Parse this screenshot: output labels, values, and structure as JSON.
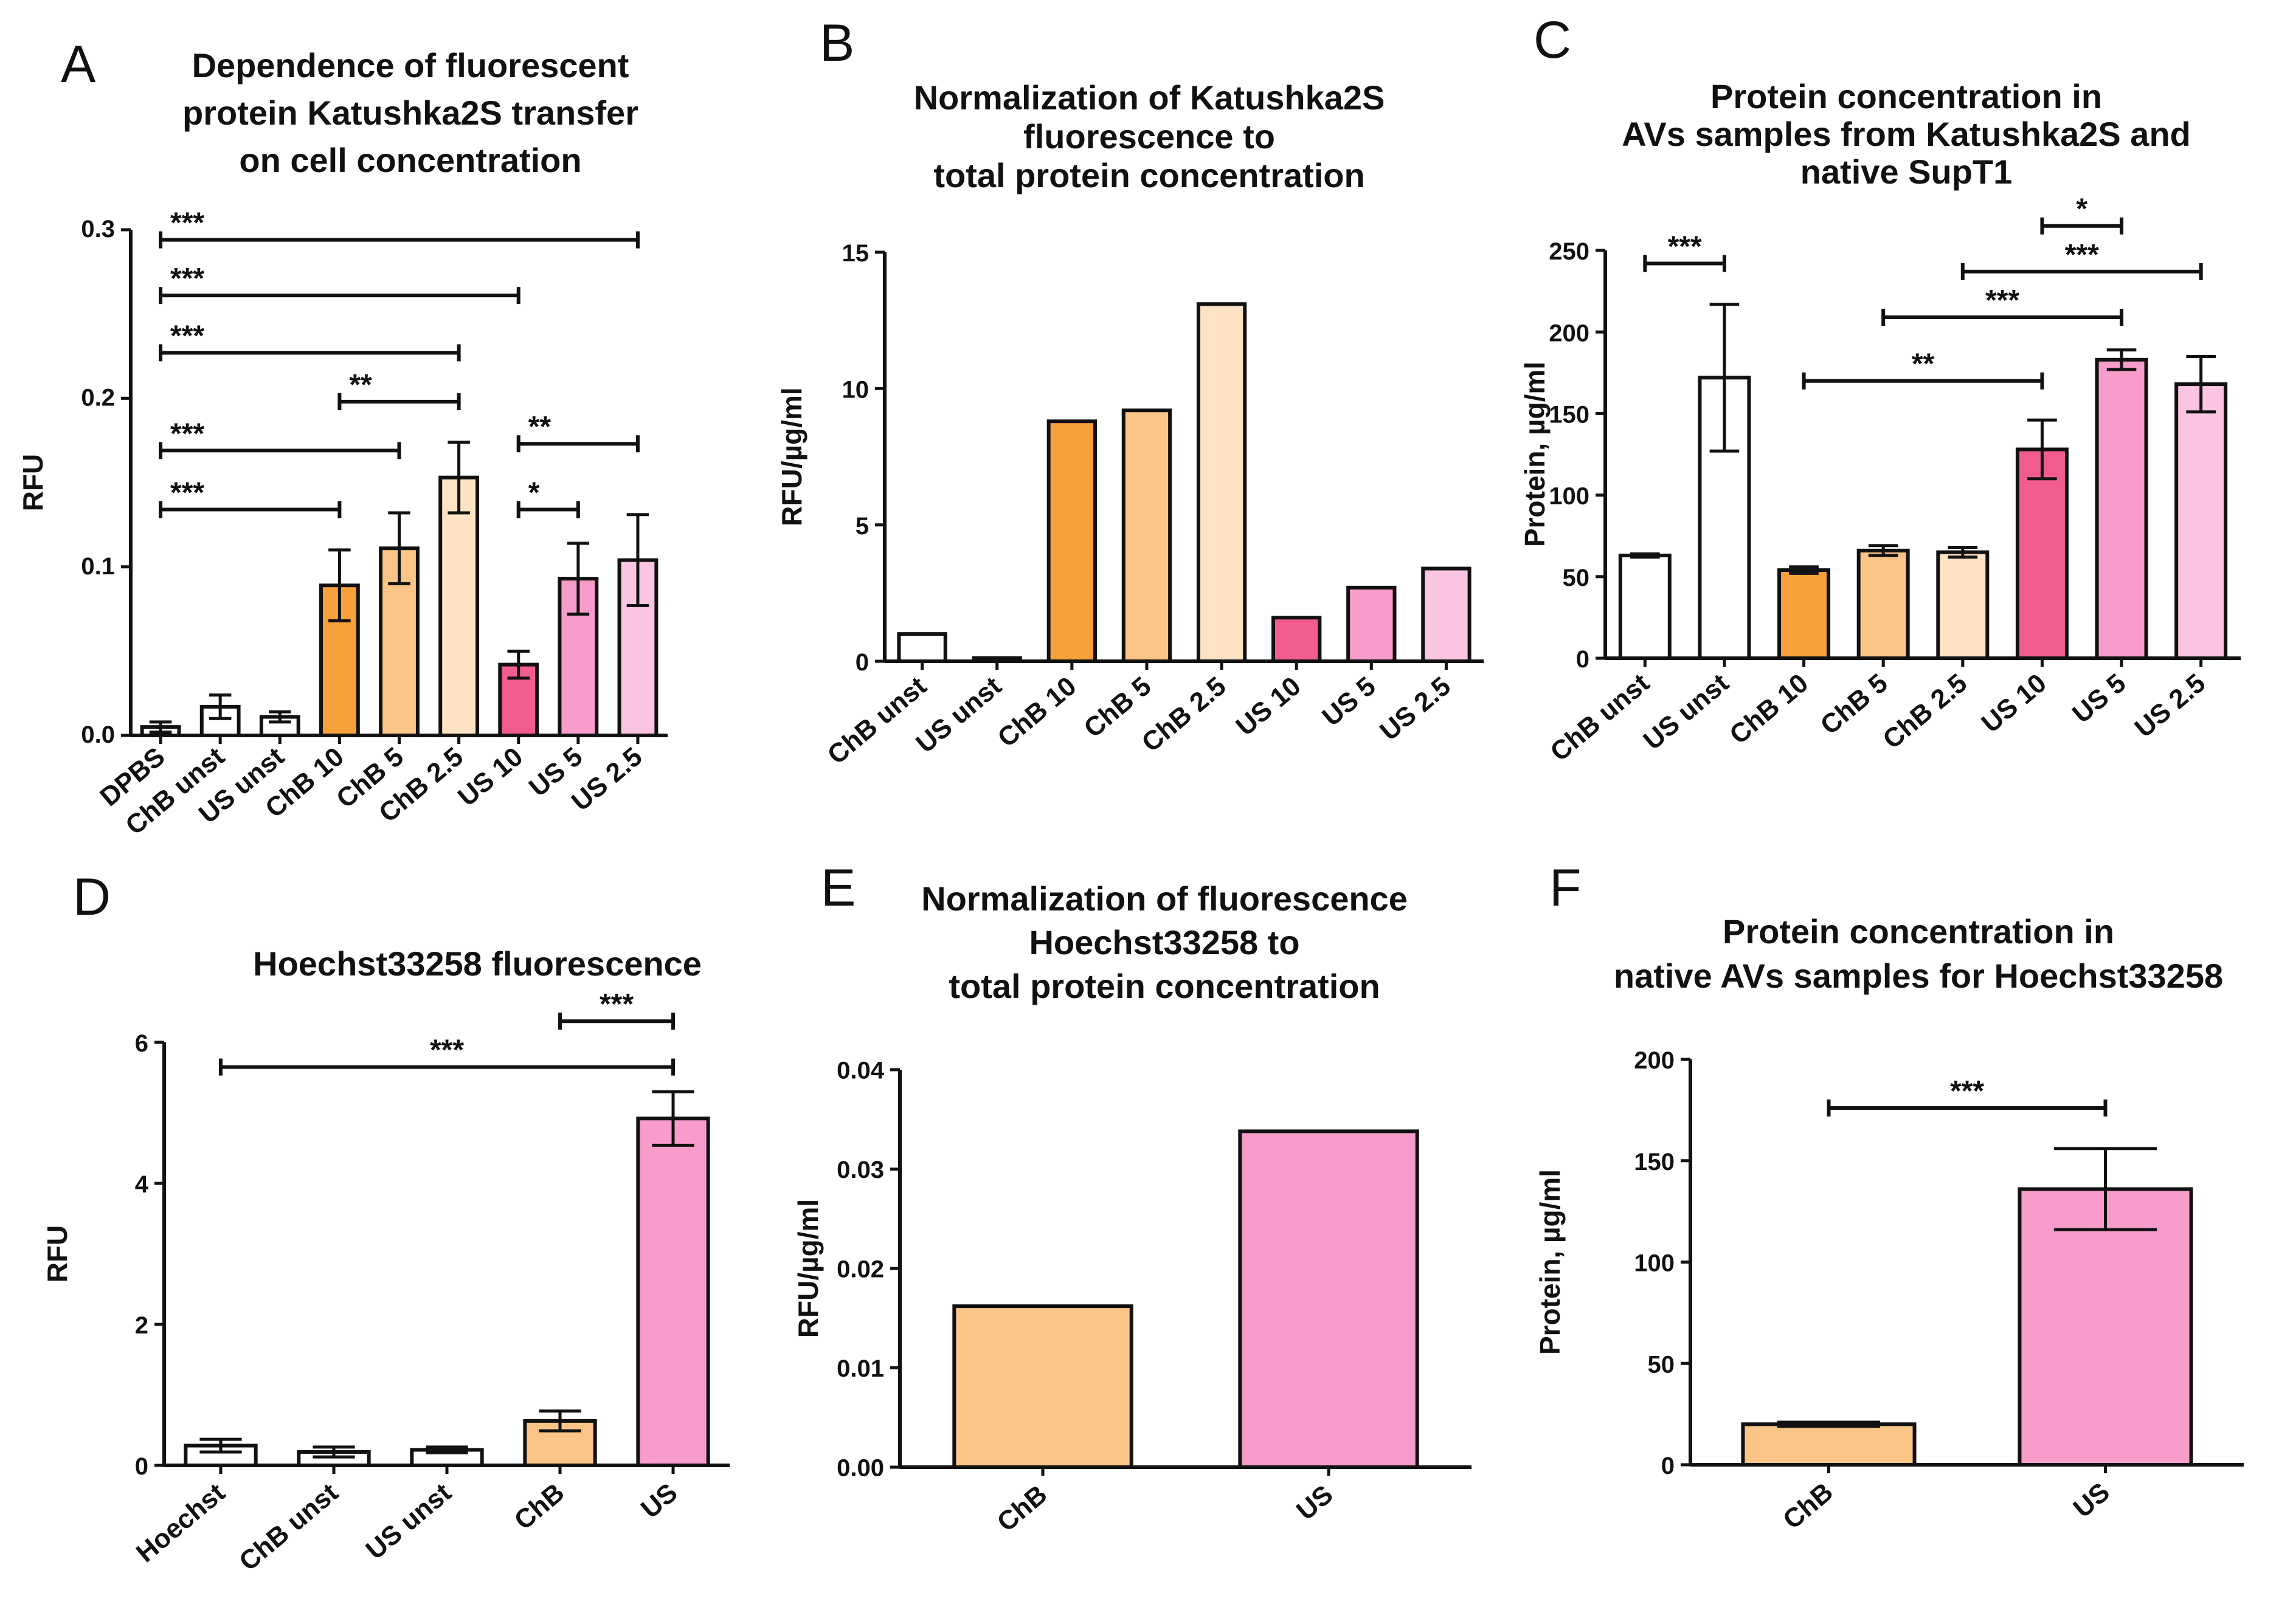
{
  "chart_data": [
    {
      "type": "bar",
      "panel": "A",
      "title": [
        "Dependence of fluorescent",
        "protein Katushka2S transfer",
        "on cell concentration"
      ],
      "ylabel": "RFU",
      "xlabel": "",
      "ylim": [
        0,
        0.3
      ],
      "yticks": [
        0.0,
        0.1,
        0.2,
        0.3
      ],
      "ytick_labels": [
        "0.0",
        "0.1",
        "0.2",
        "0.3"
      ],
      "categories": [
        "DPBS",
        "ChB unst",
        "US unst",
        "ChB 10",
        "ChB 5",
        "ChB 2.5",
        "US 10",
        "US 5",
        "US 2.5"
      ],
      "values": [
        0.005,
        0.017,
        0.011,
        0.089,
        0.111,
        0.153,
        0.042,
        0.093,
        0.104
      ],
      "errors": [
        0.003,
        0.007,
        0.003,
        0.021,
        0.021,
        0.021,
        0.008,
        0.021,
        0.027
      ],
      "colors": [
        "#ffffff",
        "#ffffff",
        "#ffffff",
        "#f7a13c",
        "#fbc587",
        "#fde2c4",
        "#f25d8e",
        "#f79ccb",
        "#fbc4e2"
      ],
      "significance": [
        {
          "from": 0,
          "to": 8,
          "y": 0.294,
          "label": "***"
        },
        {
          "from": 0,
          "to": 6,
          "y": 0.261,
          "label": "***"
        },
        {
          "from": 0,
          "to": 5,
          "y": 0.227,
          "label": "***"
        },
        {
          "from": 3,
          "to": 5,
          "y": 0.198,
          "label": "**"
        },
        {
          "from": 0,
          "to": 4,
          "y": 0.169,
          "label": "***"
        },
        {
          "from": 0,
          "to": 3,
          "y": 0.134,
          "label": "***"
        },
        {
          "from": 6,
          "to": 8,
          "y": 0.173,
          "label": "**"
        },
        {
          "from": 6,
          "to": 7,
          "y": 0.134,
          "label": "*"
        }
      ]
    },
    {
      "type": "bar",
      "panel": "B",
      "title": [
        "Normalization of Katushka2S",
        "fluorescence to",
        "total protein concentration"
      ],
      "ylabel": "RFU/µg/ml",
      "xlabel": "",
      "ylim": [
        0,
        15
      ],
      "yticks": [
        0,
        5,
        10,
        15
      ],
      "ytick_labels": [
        "0",
        "5",
        "10",
        "15"
      ],
      "categories": [
        "ChB unst",
        "US unst",
        "ChB 10",
        "ChB 5",
        "ChB 2.5",
        "US 10",
        "US 5",
        "US 2.5"
      ],
      "values": [
        1.0,
        0.12,
        8.8,
        9.2,
        13.1,
        1.6,
        2.7,
        3.4
      ],
      "errors": [
        0,
        0,
        0,
        0,
        0,
        0,
        0,
        0
      ],
      "colors": [
        "#ffffff",
        "#ffffff",
        "#f7a13c",
        "#fbc587",
        "#fde2c4",
        "#f25d8e",
        "#f79ccb",
        "#fbc4e2"
      ],
      "significance": []
    },
    {
      "type": "bar",
      "panel": "C",
      "title": [
        "Protein concentration in",
        "AVs samples from Katushka2S and",
        "native SupT1"
      ],
      "ylabel": "Protein, µg/ml",
      "xlabel": "",
      "ylim": [
        0,
        250
      ],
      "yticks": [
        0,
        50,
        100,
        150,
        200,
        250
      ],
      "ytick_labels": [
        "0",
        "50",
        "100",
        "150",
        "200",
        "250"
      ],
      "categories": [
        "ChB unst",
        "US unst",
        "ChB 10",
        "ChB 5",
        "ChB 2.5",
        "US 10",
        "US 5",
        "US 2.5"
      ],
      "values": [
        63,
        172,
        54,
        66,
        65,
        128,
        183,
        168
      ],
      "errors": [
        1,
        45,
        2,
        3,
        3,
        18,
        6,
        17
      ],
      "colors": [
        "#ffffff",
        "#ffffff",
        "#f7a13c",
        "#fbc587",
        "#fde2c4",
        "#f25d8e",
        "#f79ccb",
        "#fbc4e2"
      ],
      "significance": [
        {
          "from": 0,
          "to": 1,
          "y": 242,
          "label": "***"
        },
        {
          "from": 5,
          "to": 6,
          "y": 265,
          "label": "*"
        },
        {
          "from": 4,
          "to": 7,
          "y": 237,
          "label": "***"
        },
        {
          "from": 3,
          "to": 6,
          "y": 209,
          "label": "***"
        },
        {
          "from": 2,
          "to": 5,
          "y": 170,
          "label": "**"
        }
      ]
    },
    {
      "type": "bar",
      "panel": "D",
      "title": [
        "Hoechst33258 fluorescence"
      ],
      "ylabel": "RFU",
      "xlabel": "",
      "ylim": [
        0,
        6
      ],
      "yticks": [
        0,
        2,
        4,
        6
      ],
      "ytick_labels": [
        "0",
        "2",
        "4",
        "6"
      ],
      "categories": [
        "Hoechst",
        "ChB unst",
        "US unst",
        "ChB",
        "US"
      ],
      "values": [
        0.28,
        0.19,
        0.22,
        0.63,
        4.92
      ],
      "errors": [
        0.09,
        0.07,
        0.04,
        0.14,
        0.38
      ],
      "colors": [
        "#ffffff",
        "#ffffff",
        "#ffffff",
        "#fbc587",
        "#f79ccb"
      ],
      "significance": [
        {
          "from": 0,
          "to": 4,
          "y": 5.65,
          "label": "***"
        },
        {
          "from": 3,
          "to": 4,
          "y": 6.3,
          "label": "***"
        }
      ]
    },
    {
      "type": "bar",
      "panel": "E",
      "title": [
        "Normalization of fluorescence",
        "Hoechst33258 to",
        "total protein concentration"
      ],
      "ylabel": "RFU/µg/ml",
      "xlabel": "",
      "ylim": [
        0,
        0.04
      ],
      "yticks": [
        0.0,
        0.01,
        0.02,
        0.03,
        0.04
      ],
      "ytick_labels": [
        "0.00",
        "0.01",
        "0.02",
        "0.03",
        "0.04"
      ],
      "categories": [
        "ChB",
        "US"
      ],
      "values": [
        0.0162,
        0.0338
      ],
      "errors": [
        0,
        0
      ],
      "colors": [
        "#fbc587",
        "#f79ccb"
      ],
      "significance": []
    },
    {
      "type": "bar",
      "panel": "F",
      "title": [
        "Protein concentration in",
        "native AVs samples for Hoechst33258"
      ],
      "ylabel": "Protein, µg/ml",
      "xlabel": "",
      "ylim": [
        0,
        200
      ],
      "yticks": [
        0,
        50,
        100,
        150,
        200
      ],
      "ytick_labels": [
        "0",
        "50",
        "100",
        "150",
        "200"
      ],
      "categories": [
        "ChB",
        "US"
      ],
      "values": [
        20,
        136
      ],
      "errors": [
        1,
        20
      ],
      "colors": [
        "#fbc587",
        "#f79ccb"
      ],
      "significance": [
        {
          "from": 0,
          "to": 1,
          "y": 176,
          "label": "***"
        }
      ]
    }
  ]
}
